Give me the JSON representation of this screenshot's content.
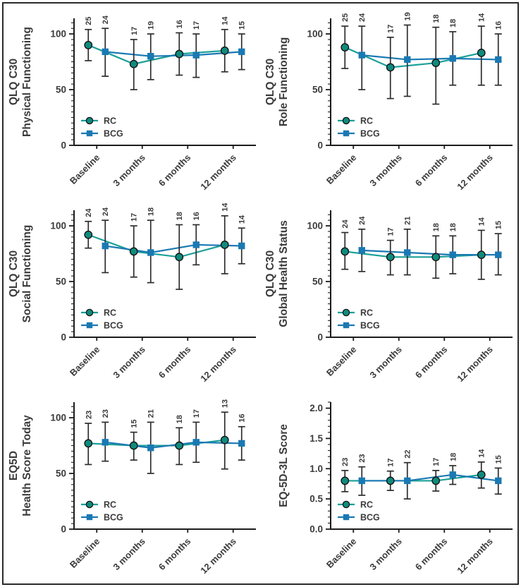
{
  "colors": {
    "rc_marker_fill": "#0f8b7e",
    "rc_marker_edge": "#141414",
    "rc_line": "#1aa098",
    "bcg_fill": "#1a79b3",
    "bcg_line": "#1a79b3",
    "error_bar": "#2d2d2d",
    "axis": "#1c1c1c",
    "text": "#3b3b3b",
    "background": "#ffffff",
    "border": "#2b2b2b"
  },
  "legend": {
    "rc_label": "RC",
    "bcg_label": "BCG"
  },
  "chart_data": [
    {
      "type": "line",
      "name": "qlq-c30-physical-functioning",
      "ylabel_lines": [
        "QLQ C30",
        "Physical Functioning"
      ],
      "categories": [
        "Baseline",
        "3 months",
        "6 months",
        "12 months"
      ],
      "ylim": [
        0,
        114
      ],
      "yticks": [
        0,
        50,
        100
      ],
      "ytick_labels": [
        "0",
        "50",
        "100"
      ],
      "minor_tick_step": 5,
      "legend_position": "lower-left",
      "series": [
        {
          "name": "RC",
          "marker": "circle",
          "values": [
            90,
            73,
            82,
            85
          ],
          "ci_low": [
            76,
            50,
            63,
            66
          ],
          "ci_high": [
            104,
            95,
            101,
            104
          ],
          "n_labels": [
            25,
            17,
            16,
            14
          ]
        },
        {
          "name": "BCG",
          "marker": "square",
          "values": [
            84,
            80,
            81,
            84
          ],
          "ci_low": [
            62,
            59,
            61,
            68
          ],
          "ci_high": [
            105,
            100,
            100,
            100
          ],
          "n_labels": [
            24,
            19,
            17,
            15
          ]
        }
      ]
    },
    {
      "type": "line",
      "name": "qlq-c30-role-functioning",
      "ylabel_lines": [
        "QLQ C30",
        "Role Functioning"
      ],
      "categories": [
        "Baseline",
        "3 months",
        "6 months",
        "12 months"
      ],
      "ylim": [
        0,
        114
      ],
      "yticks": [
        0,
        50,
        100
      ],
      "ytick_labels": [
        "0",
        "50",
        "100"
      ],
      "minor_tick_step": 5,
      "legend_position": "lower-left",
      "series": [
        {
          "name": "RC",
          "marker": "circle",
          "values": [
            88,
            70,
            74,
            83
          ],
          "ci_low": [
            69,
            42,
            37,
            54
          ],
          "ci_high": [
            107,
            97,
            106,
            107
          ],
          "n_labels": [
            25,
            17,
            18,
            14
          ]
        },
        {
          "name": "BCG",
          "marker": "square",
          "values": [
            81,
            77,
            78,
            77
          ],
          "ci_low": [
            50,
            44,
            54,
            54
          ],
          "ci_high": [
            107,
            108,
            102,
            100
          ],
          "n_labels": [
            24,
            19,
            18,
            16
          ]
        }
      ]
    },
    {
      "type": "line",
      "name": "qlq-c30-social-functioning",
      "ylabel_lines": [
        "QLQ C30",
        "Social Functioning"
      ],
      "categories": [
        "Baseline",
        "3 months",
        "6 months",
        "12 months"
      ],
      "ylim": [
        0,
        114
      ],
      "yticks": [
        0,
        50,
        100
      ],
      "ytick_labels": [
        "0",
        "50",
        "100"
      ],
      "minor_tick_step": 5,
      "legend_position": "lower-left",
      "series": [
        {
          "name": "RC",
          "marker": "circle",
          "values": [
            92,
            77,
            72,
            83
          ],
          "ci_low": [
            80,
            54,
            43,
            57
          ],
          "ci_high": [
            104,
            100,
            101,
            109
          ],
          "n_labels": [
            24,
            17,
            18,
            14
          ]
        },
        {
          "name": "BCG",
          "marker": "square",
          "values": [
            82,
            76,
            83,
            82
          ],
          "ci_low": [
            58,
            49,
            65,
            66
          ],
          "ci_high": [
            105,
            105,
            101,
            98
          ],
          "n_labels": [
            24,
            18,
            16,
            14
          ]
        }
      ]
    },
    {
      "type": "line",
      "name": "qlq-c30-global-health-status",
      "ylabel_lines": [
        "QLQ C30",
        "Global Health Status"
      ],
      "categories": [
        "Baseline",
        "3 months",
        "6 months",
        "12 months"
      ],
      "ylim": [
        0,
        114
      ],
      "yticks": [
        0,
        50,
        100
      ],
      "ytick_labels": [
        "0",
        "50",
        "100"
      ],
      "minor_tick_step": 5,
      "legend_position": "lower-left",
      "series": [
        {
          "name": "RC",
          "marker": "circle",
          "values": [
            77,
            72,
            72,
            74
          ],
          "ci_low": [
            61,
            56,
            53,
            52
          ],
          "ci_high": [
            94,
            87,
            91,
            96
          ],
          "n_labels": [
            24,
            17,
            18,
            14
          ]
        },
        {
          "name": "BCG",
          "marker": "square",
          "values": [
            78,
            76,
            74,
            74
          ],
          "ci_low": [
            59,
            56,
            57,
            56
          ],
          "ci_high": [
            97,
            97,
            91,
            93
          ],
          "n_labels": [
            24,
            21,
            18,
            15
          ]
        }
      ]
    },
    {
      "type": "line",
      "name": "eq5d-health-score-today",
      "ylabel_lines": [
        "EQ5D",
        "Health Score Today"
      ],
      "categories": [
        "Baseline",
        "3 months",
        "6 months",
        "12 months"
      ],
      "ylim": [
        0,
        114
      ],
      "yticks": [
        0,
        50,
        100
      ],
      "ytick_labels": [
        "0",
        "50",
        "100"
      ],
      "minor_tick_step": 5,
      "legend_position": "lower-left",
      "series": [
        {
          "name": "RC",
          "marker": "circle",
          "values": [
            77,
            75,
            75,
            80
          ],
          "ci_low": [
            58,
            62,
            58,
            54
          ],
          "ci_high": [
            95,
            87,
            91,
            105
          ],
          "n_labels": [
            23,
            15,
            18,
            13
          ]
        },
        {
          "name": "BCG",
          "marker": "square",
          "values": [
            78,
            73,
            78,
            77
          ],
          "ci_low": [
            61,
            50,
            60,
            62
          ],
          "ci_high": [
            96,
            96,
            96,
            92
          ],
          "n_labels": [
            23,
            21,
            17,
            16
          ]
        }
      ]
    },
    {
      "type": "line",
      "name": "eq-5d-3l-score",
      "ylabel_lines": [
        "EQ-5D-3L Score"
      ],
      "categories": [
        "Baseline",
        "3 months",
        "6 months",
        "12 months"
      ],
      "ylim": [
        0,
        2.1
      ],
      "yticks": [
        0,
        0.5,
        1.0,
        1.5,
        2.0
      ],
      "ytick_labels": [
        "0.0",
        "0.5",
        "1.0",
        "1.5",
        "2.0"
      ],
      "minor_tick_step": 0.1,
      "legend_position": "lower-left",
      "series": [
        {
          "name": "RC",
          "marker": "circle",
          "values": [
            0.8,
            0.8,
            0.8,
            0.9
          ],
          "ci_low": [
            0.62,
            0.64,
            0.63,
            0.68
          ],
          "ci_high": [
            0.97,
            0.96,
            0.97,
            1.11
          ],
          "n_labels": [
            23,
            17,
            17,
            14
          ]
        },
        {
          "name": "BCG",
          "marker": "square",
          "values": [
            0.8,
            0.8,
            0.9,
            0.8
          ],
          "ci_low": [
            0.56,
            0.5,
            0.74,
            0.58
          ],
          "ci_high": [
            1.03,
            1.1,
            1.05,
            1.01
          ],
          "n_labels": [
            23,
            22,
            18,
            15
          ]
        }
      ]
    }
  ]
}
